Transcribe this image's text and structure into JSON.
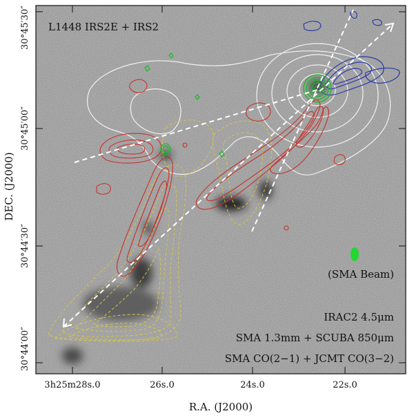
{
  "figure": {
    "title": "L1448 IRS2E + IRS2",
    "xlabel": "R.A. (J2000)",
    "ylabel": "DEC. (J2000)",
    "beam_label": "(SMA Beam)",
    "legend_lines": [
      "IRAC2 4.5μm",
      "SMA 1.3mm + SCUBA 850μm",
      "SMA CO(2−1) + JCMT CO(3−2)"
    ],
    "x_ticks": [
      "3h25m28s.0",
      "26s.0",
      "24s.0",
      "22s.0"
    ],
    "y_ticks": [
      "30°45′30″",
      "30°45′00″",
      "30°44′30″",
      "30°44′00″"
    ],
    "colors": {
      "background": "#8c8c8c",
      "red_lobe": "#c8302a",
      "blue_lobe": "#2a3aa8",
      "green_dust": "#22b830",
      "yellow_co": "#d6c642",
      "white_contours": "#f2f2f2",
      "outflow_axes": "#ffffff"
    }
  },
  "chart_data": {
    "type": "image",
    "title": "L1448 IRS2E + IRS2",
    "xlabel": "R.A. (J2000)",
    "ylabel": "DEC. (J2000)",
    "x_ticks": [
      "3h25m28s.0",
      "26s.0",
      "24s.0",
      "22s.0"
    ],
    "y_ticks": [
      "30°45′30″",
      "30°45′00″",
      "30°44′30″",
      "30°44′00″"
    ],
    "layers": [
      "IRAC2 4.5μm",
      "SMA 1.3mm + SCUBA 850μm",
      "SMA CO(2−1) + JCMT CO(3−2)"
    ],
    "annotations": [
      "(SMA Beam)"
    ]
  }
}
